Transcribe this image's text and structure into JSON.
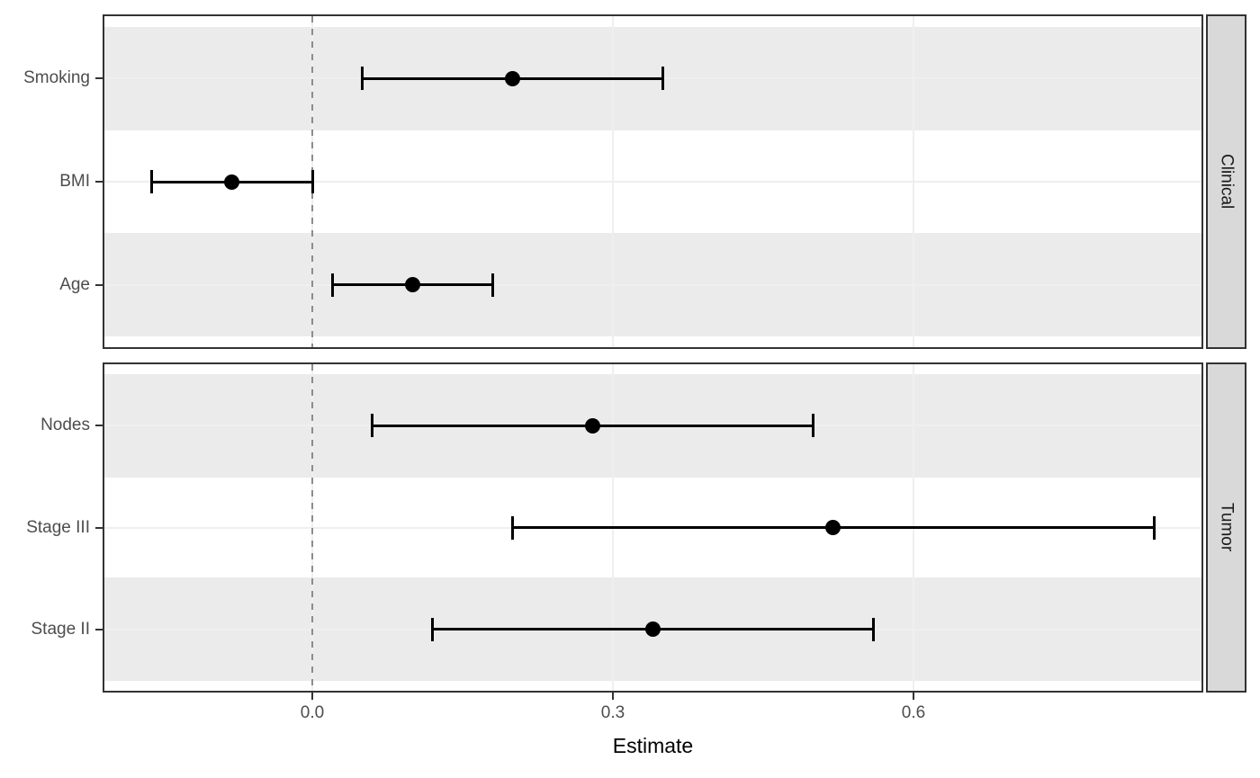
{
  "figure_title": "",
  "chart_data": {
    "type": "scatter",
    "subtype": "forest-pointrange",
    "title": "",
    "xlabel": "Estimate",
    "ylabel": "",
    "xlim": [
      -0.2093,
      0.8892
    ],
    "xticks": [
      0.0,
      0.3,
      0.6
    ],
    "xtick_labels": [
      "0.0",
      "0.3",
      "0.6"
    ],
    "grid": true,
    "reference_line": {
      "x": 0.0,
      "style": "dashed"
    },
    "legend": "none",
    "facets": [
      {
        "label": "Clinical",
        "rows": [
          {
            "label": "Smoking",
            "estimate": 0.2,
            "ci_low": 0.05,
            "ci_high": 0.35
          },
          {
            "label": "BMI",
            "estimate": -0.08,
            "ci_low": -0.16,
            "ci_high": 0.0
          },
          {
            "label": "Age",
            "estimate": 0.1,
            "ci_low": 0.02,
            "ci_high": 0.18
          }
        ]
      },
      {
        "label": "Tumor",
        "rows": [
          {
            "label": "Nodes",
            "estimate": 0.28,
            "ci_low": 0.06,
            "ci_high": 0.5
          },
          {
            "label": "Stage III",
            "estimate": 0.52,
            "ci_low": 0.2,
            "ci_high": 0.84
          },
          {
            "label": "Stage II",
            "estimate": 0.34,
            "ci_low": 0.12,
            "ci_high": 0.56
          }
        ]
      }
    ],
    "colors": {
      "point": "#000000",
      "errorbar": "#000000",
      "stripe_band": "#ebebeb",
      "gridline": "#efefef",
      "panel_border": "#333333",
      "facet_strip_bg": "#d9d9d9",
      "reference_line": "#8c8c8c",
      "axis_text": "#4d4d4d",
      "axis_title": "#000000"
    }
  }
}
